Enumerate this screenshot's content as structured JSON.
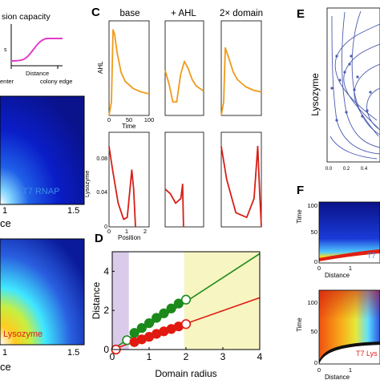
{
  "figure": {
    "panel_letters": {
      "c": "C",
      "d": "D",
      "e": "E",
      "f": "F"
    },
    "panel_left": {
      "inset_title": "sion capacity",
      "inset_x_label": "Distance",
      "inset_center_label": "enter",
      "inset_edge_label": "colony edge",
      "inset_y_fragment": "s",
      "heatmap_top_label": "T7 RNAP",
      "heatmap_bottom_label": "Lysozyme",
      "x_label_top": "ce",
      "x_label_bottom": "ce",
      "tick_1": "1",
      "tick_15": "1.5"
    },
    "panel_c": {
      "column_titles": [
        "base",
        "+ AHL",
        "2× domain"
      ],
      "ahl_ylabel": "AHL",
      "lys_ylabel": "Lysozyme",
      "time_label": "Time",
      "position_label": "Position",
      "time_ticks": [
        "0",
        "50",
        "100"
      ],
      "position_ticks": [
        "0",
        "1",
        "2"
      ],
      "lys_yticks": [
        "0.08",
        "0.04",
        "0"
      ]
    },
    "panel_e": {
      "ylabel": "Lysozyme",
      "xticks": [
        "0.0",
        "0.2",
        "0.4"
      ]
    },
    "panel_f": {
      "time_label": "Time",
      "distance_label": "Distance",
      "yticks": [
        "100",
        "50",
        "0"
      ],
      "xticks": [
        "0",
        "1"
      ],
      "top_label": "T7",
      "bottom_label": "T7 Lys"
    },
    "colors": {
      "ahl_curve": "#f09a1a",
      "lysozyme_curve": "#d81e16",
      "green_series": "#1b8a1b",
      "red_series": "#e01a10",
      "purple_region": "#d9cbe9",
      "yellow_region": "#f7f5c2",
      "inset_curve": "#e23cc8",
      "stream_color": "#4b5bb0"
    }
  },
  "chart_data": [
    {
      "panel": "D",
      "type": "scatter",
      "title": "",
      "xlabel": "Domain radius",
      "ylabel": "Distance",
      "xlim": [
        0,
        4
      ],
      "ylim": [
        0,
        5
      ],
      "xticks": [
        0,
        1,
        2,
        3,
        4
      ],
      "yticks": [
        0,
        2,
        4
      ],
      "shaded_regions": [
        {
          "from": 0,
          "to": 0.45,
          "color": "#d9cbe9"
        },
        {
          "from": 1.95,
          "to": 4,
          "color": "#f7f5c2"
        }
      ],
      "series": [
        {
          "color": "#1b8a1b",
          "fit_line": {
            "x": [
              0,
              4
            ],
            "y": [
              0,
              4.9
            ]
          },
          "points": [
            {
              "x": 0.4,
              "y": 0.48,
              "open": true
            },
            {
              "x": 0.6,
              "y": 0.85
            },
            {
              "x": 0.8,
              "y": 1.1
            },
            {
              "x": 1.0,
              "y": 1.35
            },
            {
              "x": 1.2,
              "y": 1.62
            },
            {
              "x": 1.4,
              "y": 1.85
            },
            {
              "x": 1.6,
              "y": 2.1
            },
            {
              "x": 1.8,
              "y": 2.35
            },
            {
              "x": 2.0,
              "y": 2.55,
              "open": true
            }
          ]
        },
        {
          "color": "#e01a10",
          "fit_line": {
            "x": [
              0,
              4
            ],
            "y": [
              0,
              2.65
            ]
          },
          "points": [
            {
              "x": 0.1,
              "y": 0.0,
              "open": true
            },
            {
              "x": 0.6,
              "y": 0.38
            },
            {
              "x": 0.8,
              "y": 0.52
            },
            {
              "x": 1.0,
              "y": 0.65
            },
            {
              "x": 1.2,
              "y": 0.8
            },
            {
              "x": 1.4,
              "y": 0.93
            },
            {
              "x": 1.6,
              "y": 1.05
            },
            {
              "x": 1.8,
              "y": 1.18
            },
            {
              "x": 2.0,
              "y": 1.3,
              "open": true
            }
          ]
        }
      ]
    },
    {
      "panel": "C",
      "type": "line",
      "title": "",
      "xlabel": "Time",
      "ylabel": "AHL",
      "xlim": [
        0,
        100
      ],
      "subplots": [
        {
          "name": "base",
          "x": [
            0,
            6,
            10,
            14,
            20,
            30,
            40,
            60,
            80,
            100
          ],
          "y": [
            0.0,
            0.15,
            0.95,
            0.9,
            0.7,
            0.48,
            0.38,
            0.3,
            0.26,
            0.24
          ]
        },
        {
          "name": "+ AHL",
          "x": [
            0,
            10,
            20,
            30,
            40,
            50,
            60,
            70,
            80,
            100
          ],
          "y": [
            0.5,
            0.35,
            0.15,
            0.15,
            0.45,
            0.6,
            0.52,
            0.4,
            0.33,
            0.27
          ]
        },
        {
          "name": "2× domain",
          "x": [
            0,
            6,
            10,
            20,
            30,
            40,
            60,
            80,
            100
          ],
          "y": [
            0.0,
            0.15,
            0.75,
            0.62,
            0.48,
            0.4,
            0.32,
            0.28,
            0.26
          ]
        }
      ]
    },
    {
      "panel": "C",
      "type": "line",
      "title": "",
      "xlabel": "Position",
      "ylabel": "Lysozyme",
      "ylim": [
        0,
        0.1
      ],
      "subplots": [
        {
          "name": "base",
          "x": [
            0,
            0.2,
            0.5,
            0.8,
            1.0,
            1.1,
            1.25,
            1.35,
            1.45
          ],
          "y": [
            0.085,
            0.06,
            0.025,
            0.008,
            0.01,
            0.03,
            0.06,
            0.04,
            0.0
          ]
        },
        {
          "name": "+ AHL",
          "x": [
            0,
            0.3,
            0.6,
            0.9,
            1.0,
            1.05
          ],
          "y": [
            0.04,
            0.035,
            0.025,
            0.03,
            0.045,
            0.0
          ]
        },
        {
          "name": "2× domain",
          "x": [
            0,
            0.3,
            0.8,
            1.4,
            1.8,
            2.0,
            2.1,
            2.2
          ],
          "y": [
            0.085,
            0.05,
            0.015,
            0.01,
            0.03,
            0.085,
            0.04,
            0.0
          ]
        }
      ]
    }
  ]
}
